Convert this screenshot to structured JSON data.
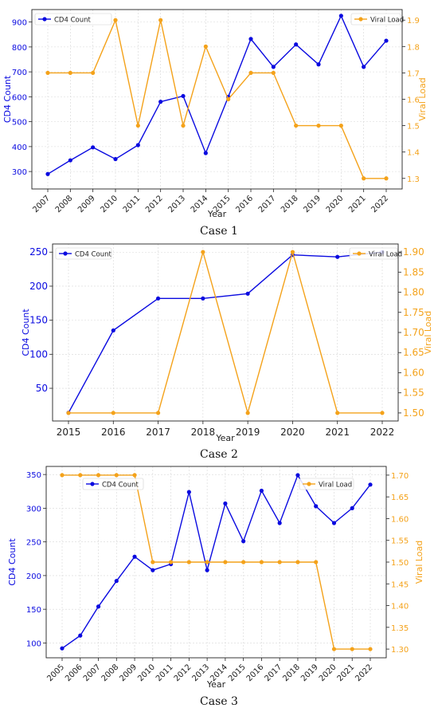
{
  "colors": {
    "cd4": "#0a0ae0",
    "viral": "#f4a21a",
    "grid": "#d7d7d7",
    "axis": "#222222"
  },
  "chart_data": [
    {
      "type": "line",
      "caption": "Case 1",
      "xlabel": "Year",
      "x": [
        "2007",
        "2008",
        "2009",
        "2010",
        "2011",
        "2012",
        "2013",
        "2014",
        "2015",
        "2016",
        "2017",
        "2018",
        "2019",
        "2020",
        "2021",
        "2022"
      ],
      "series": [
        {
          "name": "CD4 Count",
          "axis": "left",
          "values": [
            290,
            345,
            397,
            350,
            406,
            580,
            603,
            374,
            600,
            832,
            720,
            810,
            730,
            925,
            720,
            825
          ]
        },
        {
          "name": "Viral Load",
          "axis": "right",
          "values": [
            1.7,
            1.7,
            1.7,
            1.9,
            1.5,
            1.9,
            1.5,
            1.8,
            1.6,
            1.7,
            1.7,
            1.5,
            1.5,
            1.5,
            1.3,
            1.3
          ]
        }
      ],
      "ylabel": "CD4 Count",
      "y2label": "Viral Load",
      "ylim": [
        230,
        950
      ],
      "y2lim": [
        1.26,
        1.94
      ],
      "yticks": [
        300,
        400,
        500,
        600,
        700,
        800,
        900
      ],
      "y2ticks": [
        1.3,
        1.4,
        1.5,
        1.6,
        1.7,
        1.8,
        1.9
      ],
      "y2decimals": 1,
      "legend_left": "top-left",
      "legend_right": "top-right",
      "grid": true
    },
    {
      "type": "line",
      "caption": "Case 2",
      "xlabel": "Year",
      "x": [
        "2015",
        "2016",
        "2017",
        "2018",
        "2019",
        "2020",
        "2021",
        "2022"
      ],
      "series": [
        {
          "name": "CD4 Count",
          "axis": "left",
          "values": [
            14,
            135,
            182,
            182,
            189,
            246,
            243,
            250
          ]
        },
        {
          "name": "Viral Load",
          "axis": "right",
          "values": [
            1.5,
            1.5,
            1.5,
            1.9,
            1.5,
            1.9,
            1.5,
            1.5
          ]
        }
      ],
      "ylabel": "CD4 Count",
      "y2label": "Viral Load",
      "ylim": [
        2,
        262
      ],
      "y2lim": [
        1.48,
        1.92
      ],
      "yticks": [
        50,
        100,
        150,
        200,
        250
      ],
      "y2ticks": [
        1.5,
        1.55,
        1.6,
        1.65,
        1.7,
        1.75,
        1.8,
        1.85,
        1.9
      ],
      "y2decimals": 2,
      "legend_left": "top-left",
      "legend_right": "top-right",
      "grid": true
    },
    {
      "type": "line",
      "caption": "Case 3",
      "xlabel": "Year",
      "x": [
        "2005",
        "2006",
        "2007",
        "2008",
        "2009",
        "2010",
        "2011",
        "2012",
        "2013",
        "2014",
        "2015",
        "2016",
        "2017",
        "2018",
        "2019",
        "2020",
        "2021",
        "2022"
      ],
      "series": [
        {
          "name": "CD4 Count",
          "axis": "left",
          "values": [
            92,
            111,
            154,
            192,
            228,
            208,
            217,
            324,
            208,
            307,
            251,
            326,
            278,
            349,
            303,
            278,
            300,
            335
          ]
        },
        {
          "name": "Viral Load",
          "axis": "right",
          "values": [
            1.7,
            1.7,
            1.7,
            1.7,
            1.7,
            1.5,
            1.5,
            1.5,
            1.5,
            1.5,
            1.5,
            1.5,
            1.5,
            1.5,
            1.5,
            1.3,
            1.3,
            1.3
          ]
        }
      ],
      "ylabel": "CD4 Count",
      "y2label": "Viral Load",
      "ylim": [
        78,
        362
      ],
      "y2lim": [
        1.28,
        1.72
      ],
      "yticks": [
        100,
        150,
        200,
        250,
        300,
        350
      ],
      "y2ticks": [
        1.3,
        1.35,
        1.4,
        1.45,
        1.5,
        1.55,
        1.6,
        1.65,
        1.7
      ],
      "y2decimals": 2,
      "legend_left": "upper-center",
      "legend_right": "upper-center",
      "grid": true
    }
  ]
}
